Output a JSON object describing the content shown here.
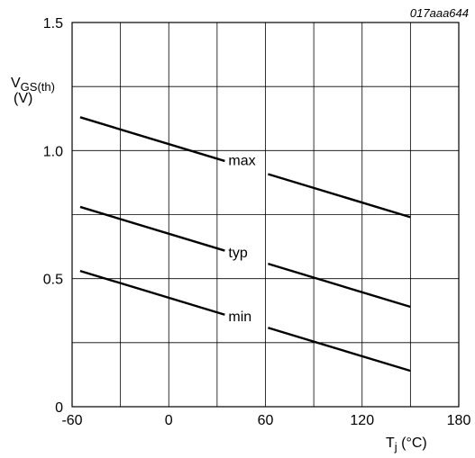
{
  "chart_data": {
    "type": "line",
    "reference_code": "017aaa644",
    "ylabel": {
      "main": "V",
      "sub": "GS(th)",
      "unit": "(V)"
    },
    "xlabel": {
      "main": "T",
      "sub": "j",
      "unit": " (°C)"
    },
    "xlim": [
      -60,
      180
    ],
    "ylim": [
      0,
      1.5
    ],
    "x_ticks": [
      -60,
      0,
      60,
      120,
      180
    ],
    "x_tick_labels": [
      "-60",
      "0",
      "60",
      "120",
      "180"
    ],
    "y_ticks": [
      0,
      0.5,
      1.0,
      1.5
    ],
    "y_tick_labels": [
      "0",
      "0.5",
      "1.0",
      "1.5"
    ],
    "grid": true,
    "series": [
      {
        "name": "max",
        "x": [
          -55,
          150
        ],
        "y": [
          1.13,
          0.74
        ],
        "label_x": 37,
        "label_y": 0.965
      },
      {
        "name": "typ",
        "x": [
          -55,
          150
        ],
        "y": [
          0.78,
          0.39
        ],
        "label_x": 37,
        "label_y": 0.605
      },
      {
        "name": "min",
        "x": [
          -55,
          150
        ],
        "y": [
          0.53,
          0.14
        ],
        "label_x": 37,
        "label_y": 0.355
      }
    ]
  }
}
